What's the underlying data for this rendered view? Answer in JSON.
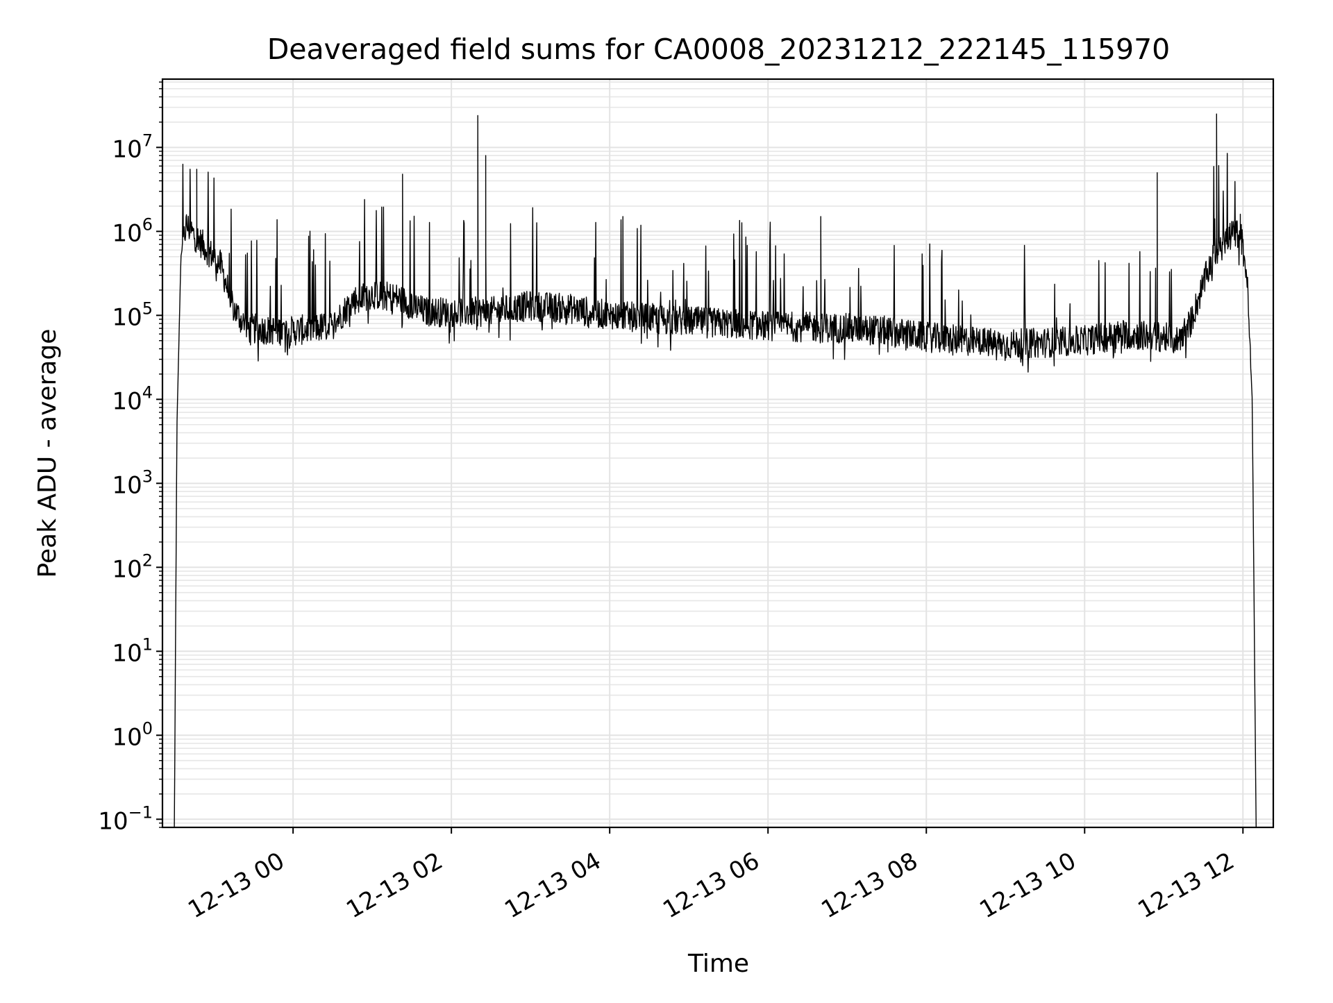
{
  "chart_data": {
    "type": "line",
    "title": "Deaveraged field sums for CA0008_20231212_222145_115970",
    "xlabel": "Time",
    "ylabel": "Peak ADU - average",
    "yscale": "log",
    "grid": true,
    "xlim": [
      "2023-12-12 22:21",
      "2023-12-13 12:23"
    ],
    "ylim": [
      0.08,
      65000000
    ],
    "x_ticks": [
      {
        "value": "2023-12-13 00:00",
        "label": "12-13 00"
      },
      {
        "value": "2023-12-13 02:00",
        "label": "12-13 02"
      },
      {
        "value": "2023-12-13 04:00",
        "label": "12-13 04"
      },
      {
        "value": "2023-12-13 06:00",
        "label": "12-13 06"
      },
      {
        "value": "2023-12-13 08:00",
        "label": "12-13 08"
      },
      {
        "value": "2023-12-13 10:00",
        "label": "12-13 10"
      },
      {
        "value": "2023-12-13 12:00",
        "label": "12-13 12"
      }
    ],
    "y_ticks": [
      {
        "value": 0.1,
        "base": "10",
        "exp": "−1"
      },
      {
        "value": 1,
        "base": "10",
        "exp": "0"
      },
      {
        "value": 10,
        "base": "10",
        "exp": "1"
      },
      {
        "value": 100,
        "base": "10",
        "exp": "2"
      },
      {
        "value": 1000,
        "base": "10",
        "exp": "3"
      },
      {
        "value": 10000,
        "base": "10",
        "exp": "4"
      },
      {
        "value": 100000,
        "base": "10",
        "exp": "5"
      },
      {
        "value": 1000000,
        "base": "10",
        "exp": "6"
      },
      {
        "value": 10000000,
        "base": "10",
        "exp": "7"
      }
    ],
    "series": [
      {
        "color": "#000000",
        "baseline": [
          [
            "2023-12-12 22:30",
            0.08
          ],
          [
            "2023-12-12 22:32",
            5000
          ],
          [
            "2023-12-12 22:35",
            500000
          ],
          [
            "2023-12-12 22:39",
            1200000
          ],
          [
            "2023-12-12 22:45",
            900000
          ],
          [
            "2023-12-12 22:55",
            600000
          ],
          [
            "2023-12-12 23:05",
            400000
          ],
          [
            "2023-12-12 23:15",
            120000
          ],
          [
            "2023-12-12 23:25",
            70000
          ],
          [
            "2023-12-13 00:00",
            65000
          ],
          [
            "2023-12-13 00:30",
            75000
          ],
          [
            "2023-12-13 00:45",
            150000
          ],
          [
            "2023-12-13 01:00",
            180000
          ],
          [
            "2023-12-13 01:20",
            160000
          ],
          [
            "2023-12-13 01:40",
            110000
          ],
          [
            "2023-12-13 02:00",
            110000
          ],
          [
            "2023-12-13 02:30",
            110000
          ],
          [
            "2023-12-13 03:00",
            130000
          ],
          [
            "2023-12-13 03:30",
            120000
          ],
          [
            "2023-12-13 04:00",
            100000
          ],
          [
            "2023-12-13 05:00",
            85000
          ],
          [
            "2023-12-13 06:00",
            75000
          ],
          [
            "2023-12-13 07:00",
            70000
          ],
          [
            "2023-12-13 07:30",
            65000
          ],
          [
            "2023-12-13 08:00",
            55000
          ],
          [
            "2023-12-13 09:00",
            45000
          ],
          [
            "2023-12-13 10:00",
            50000
          ],
          [
            "2023-12-13 10:30",
            60000
          ],
          [
            "2023-12-13 11:00",
            55000
          ],
          [
            "2023-12-13 11:10",
            50000
          ],
          [
            "2023-12-13 11:20",
            80000
          ],
          [
            "2023-12-13 11:35",
            400000
          ],
          [
            "2023-12-13 11:45",
            800000
          ],
          [
            "2023-12-13 11:58",
            1000000
          ],
          [
            "2023-12-13 12:03",
            300000
          ],
          [
            "2023-12-13 12:07",
            10000
          ],
          [
            "2023-12-13 12:10",
            0.08
          ]
        ],
        "spikes": [
          [
            "2023-12-12 22:47",
            5500000
          ],
          [
            "2023-12-13 01:23",
            4800000
          ],
          [
            "2023-12-13 02:20",
            24000000
          ],
          [
            "2023-12-13 02:26",
            8000000
          ],
          [
            "2023-12-13 04:10",
            1500000
          ],
          [
            "2023-12-13 06:40",
            1500000
          ],
          [
            "2023-12-13 10:55",
            5000000
          ],
          [
            "2023-12-13 11:40",
            25000000
          ],
          [
            "2023-12-13 11:58",
            1600000
          ]
        ]
      }
    ]
  }
}
